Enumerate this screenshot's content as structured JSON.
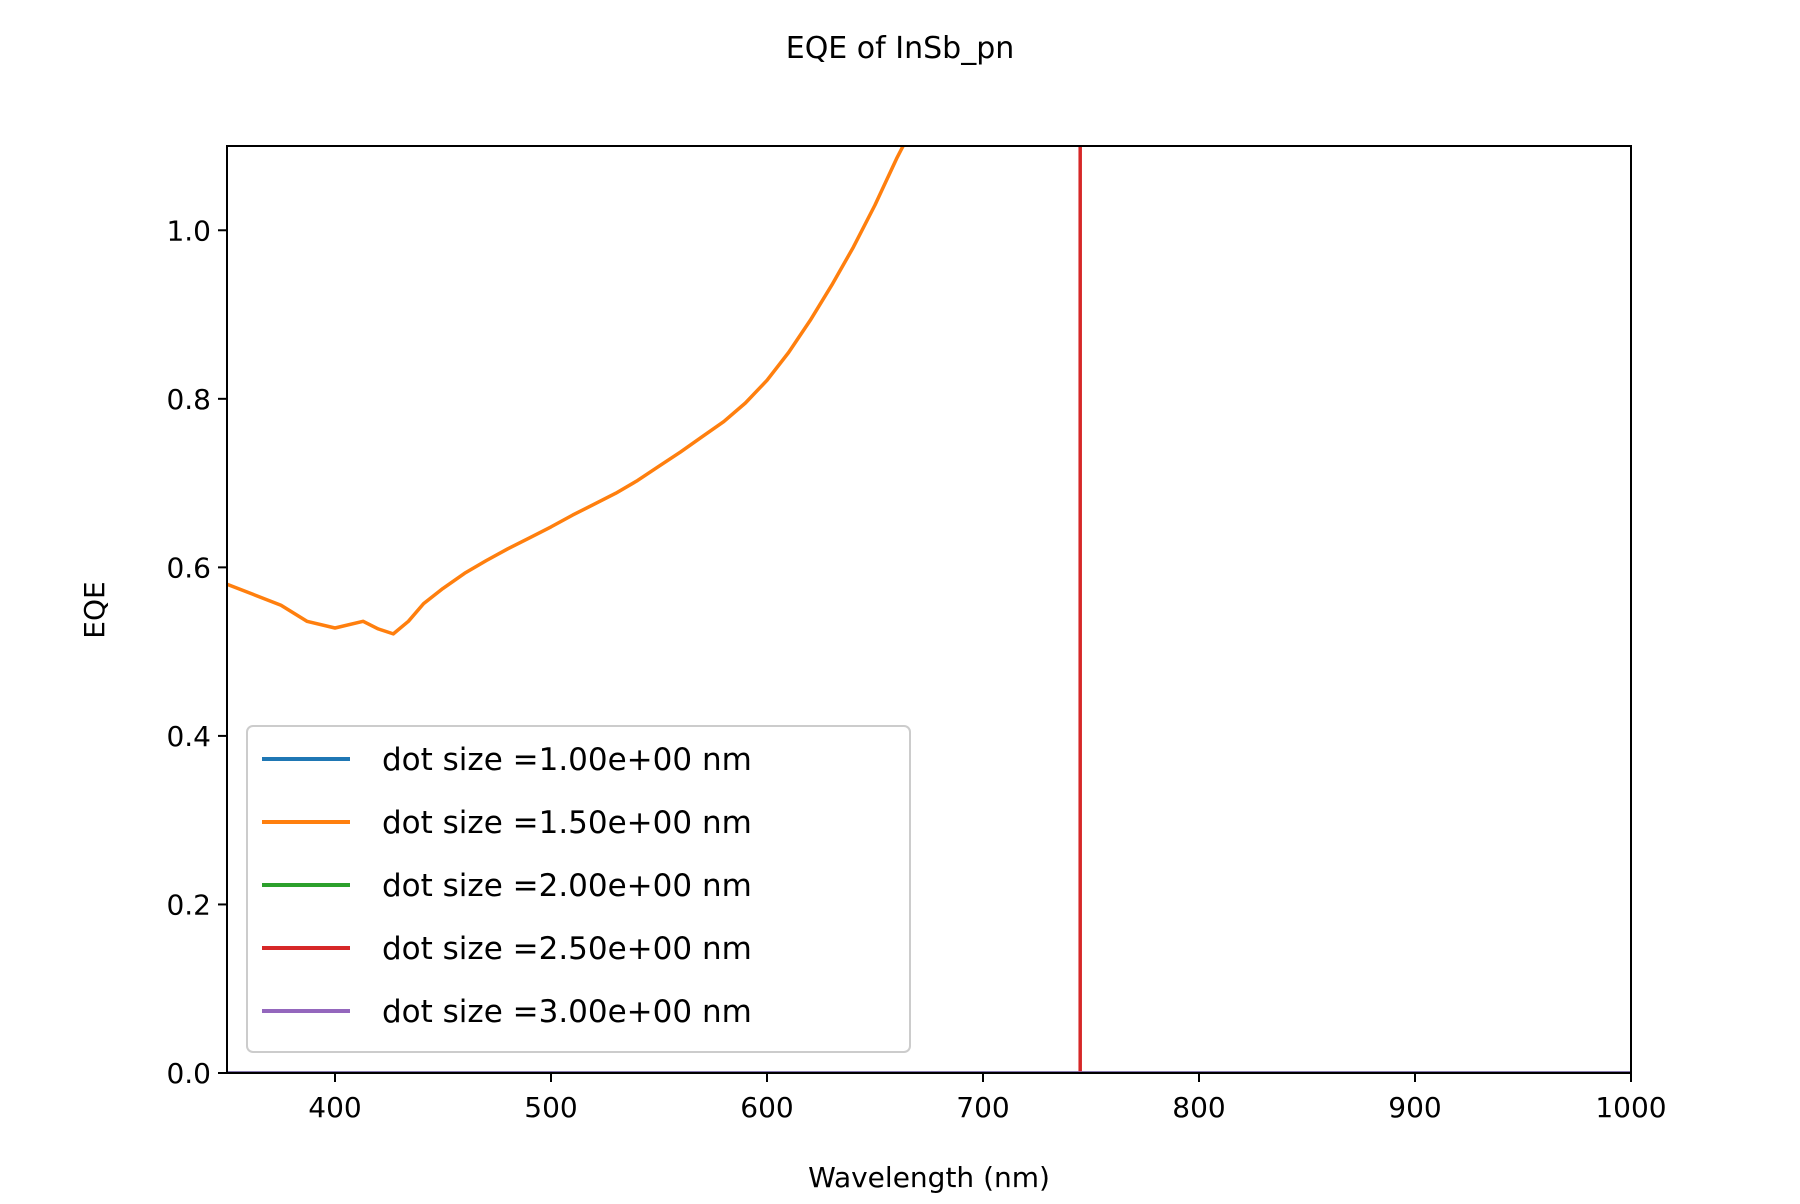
{
  "chart_data": {
    "type": "line",
    "title": "EQE of  InSb_pn",
    "xlabel": "Wavelength (nm)",
    "ylabel": "EQE",
    "xlim": [
      350,
      1000
    ],
    "ylim": [
      0,
      1.1
    ],
    "x_ticks": [
      400,
      500,
      600,
      700,
      800,
      900,
      1000
    ],
    "y_ticks": [
      0.0,
      0.2,
      0.4,
      0.6,
      0.8,
      1.0
    ],
    "x_tick_labels": [
      "400",
      "500",
      "600",
      "700",
      "800",
      "900",
      "1000"
    ],
    "y_tick_labels": [
      "0.0",
      "0.2",
      "0.4",
      "0.6",
      "0.8",
      "1.0"
    ],
    "grid": false,
    "legend_position": "lower-left",
    "series": [
      {
        "name": "dot size =1.00e+00 nm",
        "color": "#1f77b4",
        "x": [
          350,
          1000
        ],
        "y": [
          0,
          0
        ]
      },
      {
        "name": "dot size =1.50e+00 nm",
        "color": "#ff7f0e",
        "x": [
          350,
          362,
          375,
          387,
          400,
          413,
          420,
          427,
          434,
          441,
          450,
          460,
          470,
          480,
          490,
          500,
          510,
          520,
          530,
          540,
          550,
          560,
          570,
          580,
          590,
          600,
          610,
          620,
          630,
          640,
          650,
          660,
          663
        ],
        "y": [
          0.58,
          0.568,
          0.555,
          0.536,
          0.528,
          0.536,
          0.527,
          0.521,
          0.536,
          0.557,
          0.575,
          0.593,
          0.608,
          0.622,
          0.635,
          0.648,
          0.662,
          0.675,
          0.688,
          0.703,
          0.72,
          0.737,
          0.755,
          0.773,
          0.795,
          0.822,
          0.855,
          0.893,
          0.935,
          0.98,
          1.03,
          1.085,
          1.1
        ]
      },
      {
        "name": "dot size =2.00e+00 nm",
        "color": "#2ca02c",
        "x": [
          350,
          1000
        ],
        "y": [
          0,
          0
        ]
      },
      {
        "name": "dot size =2.50e+00 nm",
        "color": "#d62728",
        "x": [
          745,
          745
        ],
        "y": [
          0,
          1.1
        ]
      },
      {
        "name": "dot size =3.00e+00 nm",
        "color": "#9467bd",
        "x": [
          350,
          1000
        ],
        "y": [
          0,
          0
        ]
      }
    ]
  }
}
